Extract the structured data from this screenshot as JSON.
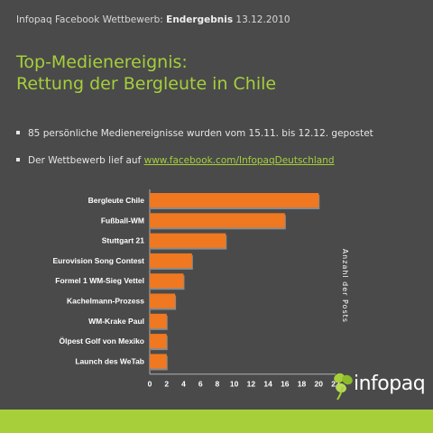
{
  "header": {
    "prefix": "Infopaq Facebook Wettbewerb: ",
    "bold": "Endergebnis",
    "date": " 13.12.2010"
  },
  "title": {
    "line1": "Top-Medienereignis:",
    "line2": "Rettung der Bergleute in Chile"
  },
  "bullets": {
    "b1": "85 persönliche Medienereignisse wurden vom 15.11. bis 12.12. gepostet",
    "b2_prefix": "Der Wettbewerb lief auf ",
    "b2_link": "www.facebook.com/InfopaqDeutschland"
  },
  "logo": {
    "text": "infopaq",
    "icon": "clover-icon"
  },
  "colors": {
    "background": "#4a4a4a",
    "accent": "#a6cf3a",
    "bar": "#f07820"
  },
  "chart_data": {
    "type": "bar",
    "orientation": "horizontal",
    "categories": [
      "Bergleute Chile",
      "Fußball-WM",
      "Stuttgart 21",
      "Eurovision Song Contest",
      "Formel 1 WM-Sieg Vettel",
      "Kachelmann-Prozess",
      "WM-Krake Paul",
      "Ölpest Golf von Mexiko",
      "Launch des WeTab"
    ],
    "values": [
      20,
      16,
      9,
      5,
      4,
      3,
      2,
      2,
      2
    ],
    "xlabel": "Anzahl der Posts",
    "xlim": [
      0,
      22
    ],
    "xticks": [
      "0",
      "2",
      "4",
      "6",
      "8",
      "10",
      "12",
      "14",
      "16",
      "18",
      "20",
      "22"
    ],
    "grid": false
  }
}
